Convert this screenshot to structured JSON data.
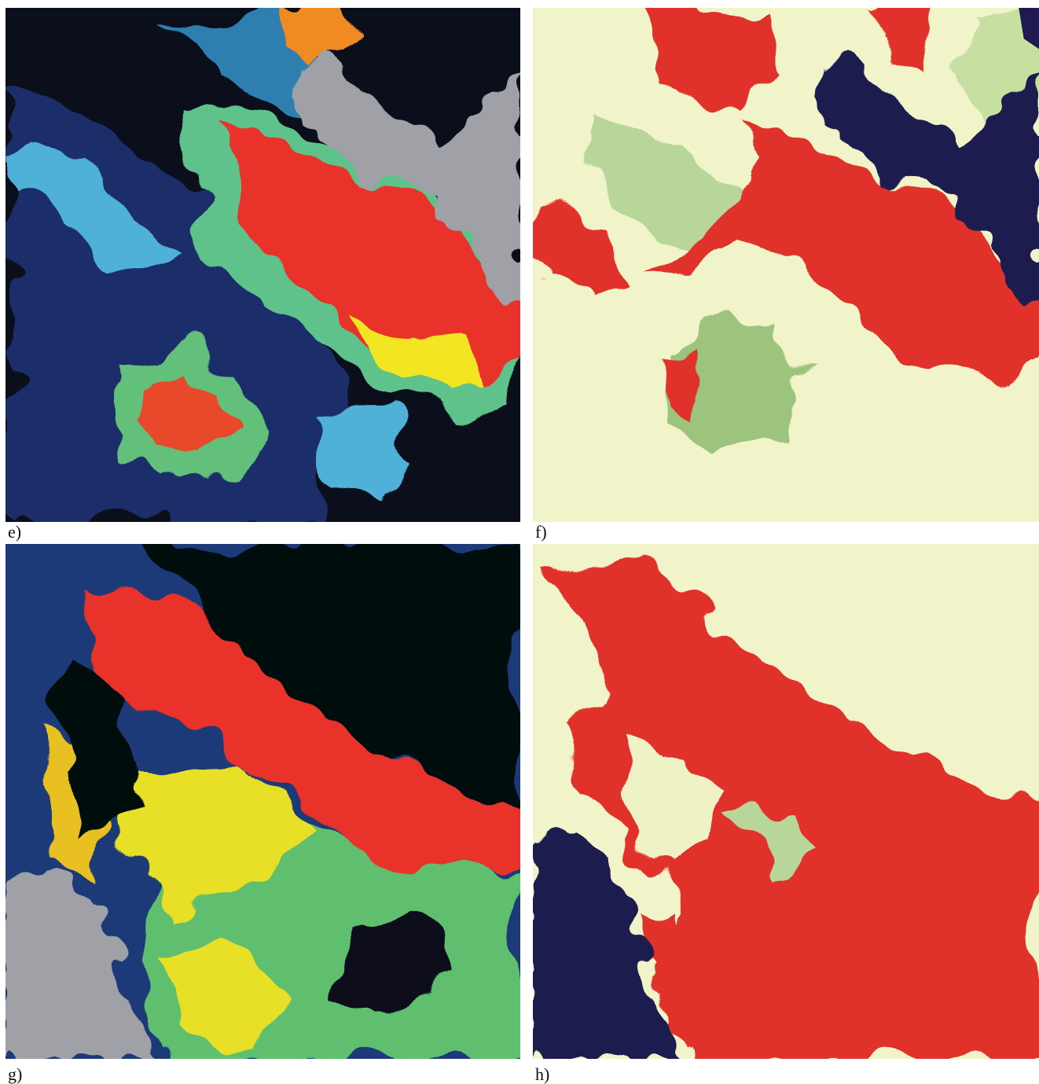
{
  "panels": [
    {
      "label": "e)"
    },
    {
      "label": "f)"
    },
    {
      "label": "g)"
    },
    {
      "label": "h)"
    }
  ]
}
